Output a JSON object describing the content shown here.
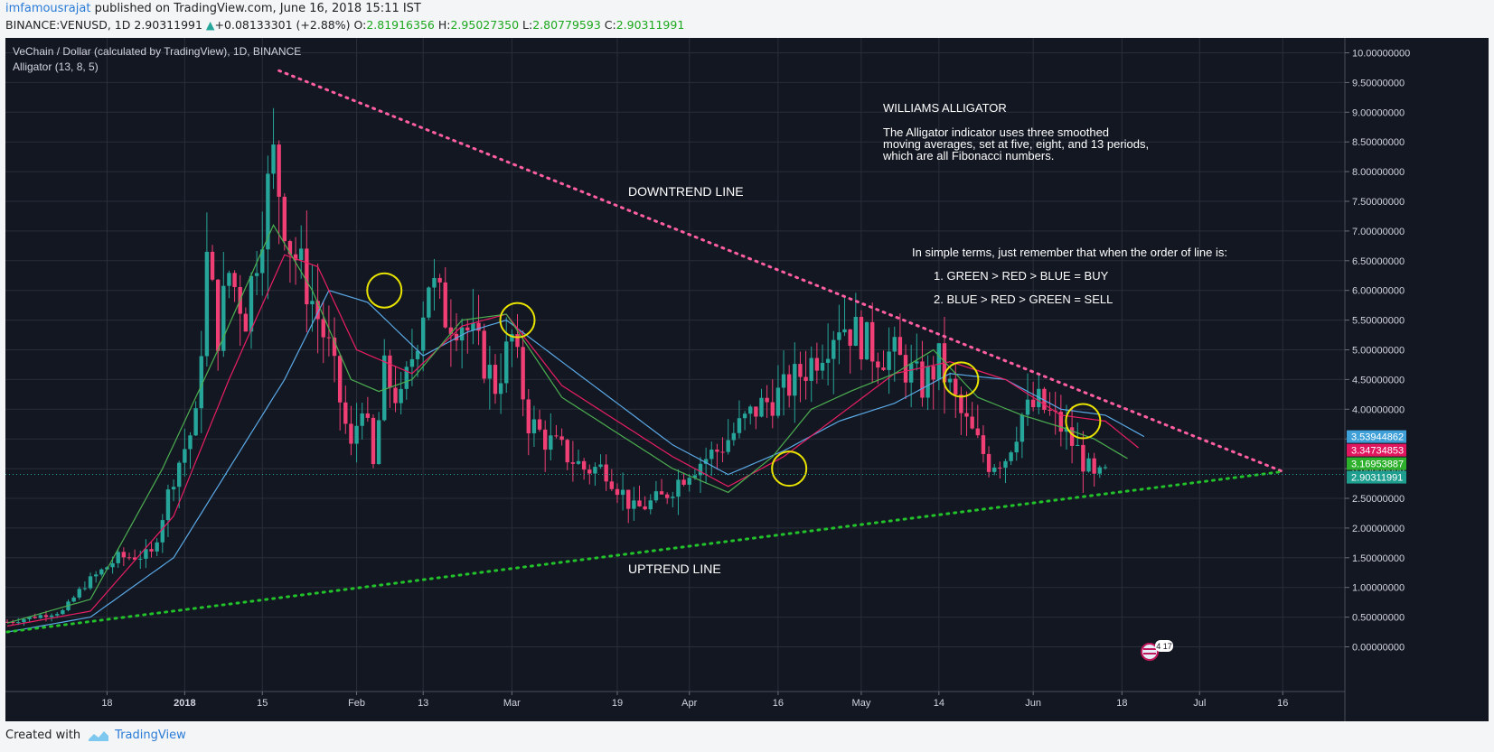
{
  "header": {
    "author": "imfamousrajat",
    "published": "published on TradingView.com, June 16, 2018 15:11 IST",
    "symbol": "BINANCE:VENUSD, 1D",
    "last": "2.90311991",
    "change_arrow": "▲",
    "change": "+0.08133301 (+2.88%)",
    "o_label": "O:",
    "o": "2.81916356",
    "h_label": "H:",
    "h": "2.95027350",
    "l_label": "L:",
    "l": "2.80779593",
    "c_label": "C:",
    "c": "2.90311991"
  },
  "footer": {
    "created_with": "Created with",
    "brand": "TradingView",
    "brand_icon": "tradingview-logo-icon"
  },
  "colors": {
    "background": "#131722",
    "grid": "#2a2e39",
    "up": "#26a69a",
    "down": "#ef3f74",
    "jaw": "#5aa9e6",
    "teeth": "#e91e63",
    "lips": "#4caf50",
    "downtrend": "#ff5fa2",
    "uptrend": "#22c22a",
    "circle": "#e8e300",
    "text": "#ffffff"
  },
  "chart_data": {
    "type": "candlestick",
    "title": "VeChain / Dollar (calculated by TradingView), 1D, BINANCE",
    "indicator": "Alligator (13, 8, 5)",
    "ylim": [
      -0.25,
      10.2
    ],
    "y_ticks": [
      "10.00000000",
      "9.50000000",
      "9.00000000",
      "8.50000000",
      "8.00000000",
      "7.50000000",
      "7.00000000",
      "6.50000000",
      "6.00000000",
      "5.50000000",
      "5.00000000",
      "4.50000000",
      "4.00000000",
      "3.50000000",
      "3.00000000",
      "2.50000000",
      "2.00000000",
      "1.50000000",
      "1.00000000",
      "0.50000000",
      "0.00000000"
    ],
    "x_ticks": [
      "18",
      "2018",
      "15",
      "Feb",
      "13",
      "Mar",
      "19",
      "Apr",
      "16",
      "May",
      "14",
      "Jun",
      "18",
      "Jul",
      "16"
    ],
    "x_tick_days": [
      18,
      32,
      46,
      63,
      75,
      91,
      110,
      123,
      139,
      154,
      168,
      185,
      201,
      215,
      230
    ],
    "price_labels": [
      {
        "value": 3.53944862,
        "text": "3.53944862",
        "series": "jaw"
      },
      {
        "value": 3.34734853,
        "text": "3.34734853",
        "series": "teeth"
      },
      {
        "value": 3.16953887,
        "text": "3.16953887",
        "series": "lips"
      },
      {
        "value": 2.90311991,
        "text": "2.90311991",
        "series": "price"
      }
    ],
    "anchors": {
      "day": [
        0,
        10,
        14,
        20,
        26,
        30,
        34,
        36,
        38,
        40,
        43,
        46,
        48,
        51,
        54,
        58,
        62,
        64,
        66,
        68,
        71,
        74,
        76,
        79,
        82,
        85,
        88,
        91,
        94,
        97,
        100,
        104,
        108,
        113,
        118,
        123,
        128,
        131,
        135,
        140,
        145,
        150,
        154,
        156,
        160,
        165,
        168,
        172,
        177,
        180,
        183,
        186,
        188,
        190,
        193,
        196,
        198
      ],
      "close": [
        0.42,
        0.6,
        1.05,
        1.5,
        1.55,
        2.9,
        3.8,
        6.5,
        5.3,
        6.3,
        5.6,
        7.2,
        8.2,
        6.8,
        6.1,
        5.0,
        3.3,
        4.2,
        3.0,
        4.6,
        4.1,
        5.3,
        6.2,
        5.6,
        5.5,
        5.0,
        4.4,
        5.2,
        3.8,
        3.5,
        3.3,
        3.0,
        3.0,
        2.3,
        2.5,
        3.0,
        3.3,
        3.6,
        4.0,
        4.3,
        4.8,
        5.5,
        5.2,
        5.0,
        4.9,
        4.4,
        4.8,
        3.9,
        3.1,
        3.2,
        3.9,
        4.1,
        3.9,
        3.7,
        3.3,
        2.8,
        2.9
      ]
    },
    "alligator": {
      "jaw": {
        "days": [
          0,
          15,
          30,
          40,
          50,
          58,
          65,
          75,
          83,
          90,
          100,
          110,
          120,
          130,
          140,
          150,
          160,
          170,
          180,
          190,
          198,
          205
        ],
        "values": [
          0.25,
          0.5,
          1.5,
          3.0,
          4.5,
          6.0,
          5.8,
          4.9,
          5.3,
          5.5,
          4.8,
          4.1,
          3.4,
          2.9,
          3.3,
          3.8,
          4.1,
          4.6,
          4.5,
          4.0,
          3.9,
          3.54
        ]
      },
      "teeth": {
        "days": [
          0,
          15,
          30,
          40,
          50,
          56,
          63,
          73,
          82,
          90,
          100,
          110,
          120,
          130,
          140,
          150,
          160,
          170,
          180,
          190,
          198,
          204
        ],
        "values": [
          0.35,
          0.6,
          2.2,
          4.5,
          6.6,
          6.4,
          5.0,
          4.6,
          5.4,
          5.6,
          4.4,
          3.8,
          3.2,
          2.7,
          3.2,
          3.9,
          4.6,
          4.8,
          4.5,
          3.9,
          3.8,
          3.35
        ]
      },
      "lips": {
        "days": [
          0,
          15,
          28,
          38,
          48,
          55,
          62,
          67,
          73,
          82,
          90,
          100,
          110,
          120,
          130,
          138,
          145,
          152,
          160,
          167,
          175,
          183,
          190,
          196,
          202
        ],
        "values": [
          0.4,
          0.8,
          3.0,
          5.0,
          7.1,
          6.0,
          4.5,
          4.3,
          4.5,
          5.5,
          5.6,
          4.2,
          3.6,
          3.0,
          2.6,
          3.2,
          4.0,
          4.3,
          4.6,
          5.0,
          4.2,
          3.9,
          3.7,
          3.5,
          3.17
        ]
      }
    },
    "trendlines": [
      {
        "name": "downtrend",
        "label": "DOWNTREND LINE",
        "from": [
          49,
          9.7
        ],
        "to": [
          230,
          2.95
        ]
      },
      {
        "name": "uptrend",
        "label": "UPTREND LINE",
        "from": [
          0,
          0.25
        ],
        "to": [
          230,
          2.95
        ]
      }
    ],
    "circles": [
      [
        68,
        6.0
      ],
      [
        92,
        5.5
      ],
      [
        141,
        3.0
      ],
      [
        172,
        4.5
      ],
      [
        194,
        3.8
      ]
    ],
    "annotations": {
      "uptrend_label": "UPTREND LINE",
      "downtrend_label": "DOWNTREND LINE",
      "alligator_title": "WILLIAMS ALLIGATOR",
      "alligator_desc_1": "The Alligator indicator uses three smoothed",
      "alligator_desc_2": "moving averages, set at five, eight, and 13 periods,",
      "alligator_desc_3": "which are all Fibonacci numbers.",
      "simple_terms": "In simple terms, just remember that when the order of line is:",
      "rule_buy": "1. GREEN > RED > BLUE = BUY",
      "rule_sell": "2. BLUE > RED > GREEN = SELL",
      "flag_badge": "4 17"
    }
  }
}
